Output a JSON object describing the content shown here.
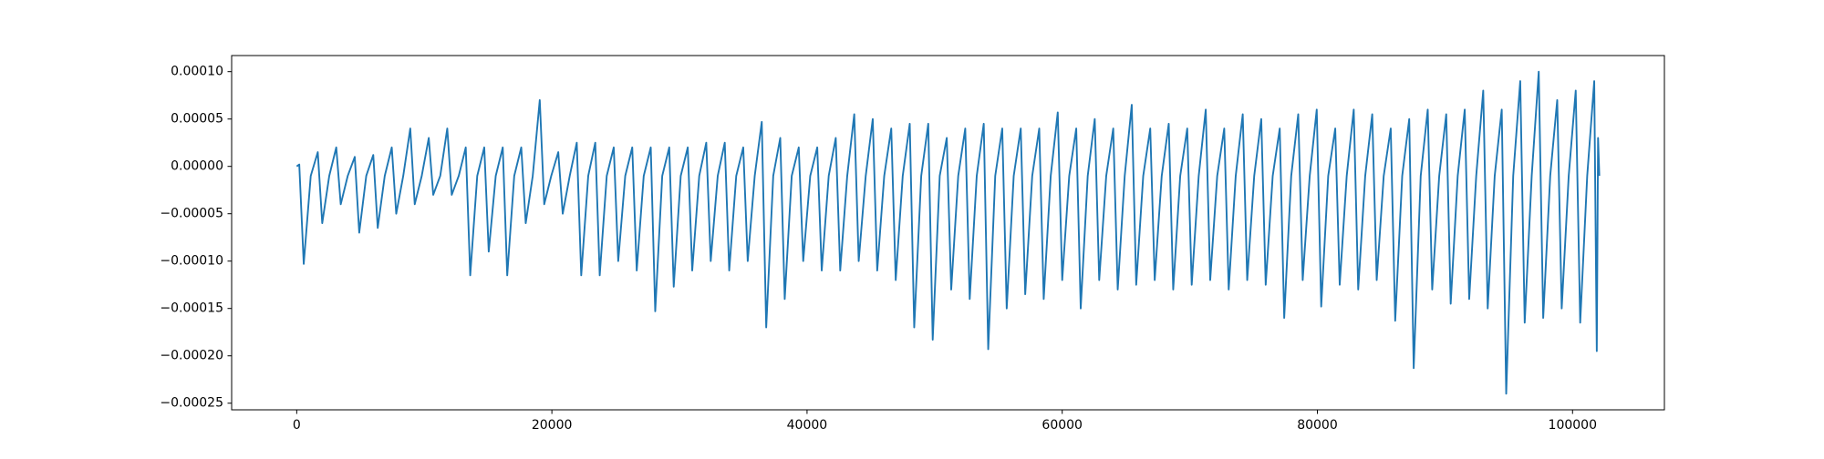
{
  "chart_data": {
    "type": "line",
    "color": "#1f77b4",
    "xlim": [
      -5100,
      107200
    ],
    "ylim": [
      -0.000257,
      0.000117
    ],
    "xticks": [
      0,
      20000,
      40000,
      60000,
      80000,
      100000
    ],
    "yticks": [
      {
        "value": 0.0001,
        "label": "0.00010"
      },
      {
        "value": 5e-05,
        "label": "0.00005"
      },
      {
        "value": 0,
        "label": "0.00000"
      },
      {
        "value": -5e-05,
        "label": "−0.00005"
      },
      {
        "value": -0.0001,
        "label": "−0.00010"
      },
      {
        "value": -0.00015,
        "label": "−0.00015"
      },
      {
        "value": -0.0002,
        "label": "−0.00020"
      },
      {
        "value": -0.00025,
        "label": "−0.00025"
      }
    ],
    "x": [
      0,
      200,
      550,
      1100,
      1650,
      2000,
      2550,
      3100,
      3450,
      4000,
      4550,
      4900,
      5450,
      6000,
      6350,
      6900,
      7450,
      7800,
      8350,
      8900,
      9250,
      9800,
      10350,
      10700,
      11250,
      11800,
      12150,
      12700,
      13250,
      13600,
      14150,
      14700,
      15050,
      15600,
      16150,
      16500,
      17050,
      17600,
      17950,
      18500,
      19050,
      19400,
      19950,
      20500,
      20850,
      21400,
      21950,
      22300,
      22850,
      23400,
      23750,
      24300,
      24850,
      25200,
      25750,
      26300,
      26650,
      27200,
      27750,
      28100,
      28650,
      29200,
      29550,
      30100,
      30650,
      31000,
      31550,
      32100,
      32450,
      33000,
      33550,
      33900,
      34450,
      35000,
      35350,
      35900,
      36450,
      36800,
      37350,
      37900,
      38250,
      38800,
      39350,
      39700,
      40250,
      40800,
      41150,
      41700,
      42250,
      42600,
      43150,
      43700,
      44050,
      44600,
      45150,
      45500,
      46050,
      46600,
      46950,
      47500,
      48050,
      48400,
      48950,
      49500,
      49850,
      50400,
      50950,
      51300,
      51850,
      52400,
      52750,
      53300,
      53850,
      54200,
      54750,
      55300,
      55650,
      56200,
      56750,
      57100,
      57650,
      58200,
      58550,
      59100,
      59650,
      60000,
      60550,
      61100,
      61450,
      62000,
      62550,
      62900,
      63450,
      64000,
      64350,
      64900,
      65450,
      65800,
      66350,
      66900,
      67250,
      67800,
      68350,
      68700,
      69250,
      69800,
      70150,
      70700,
      71250,
      71600,
      72150,
      72700,
      73050,
      73600,
      74150,
      74500,
      75050,
      75600,
      75950,
      76500,
      77050,
      77400,
      77950,
      78500,
      78850,
      79400,
      79950,
      80300,
      80850,
      81400,
      81750,
      82300,
      82850,
      83200,
      83750,
      84300,
      84650,
      85200,
      85750,
      86100,
      86650,
      87200,
      87550,
      88100,
      88650,
      89000,
      89550,
      90100,
      90450,
      91000,
      91550,
      91900,
      92450,
      93000,
      93350,
      93900,
      94450,
      94800,
      95350,
      95900,
      96250,
      96800,
      97350,
      97700,
      98250,
      98800,
      99150,
      99700,
      100250,
      100600,
      101150,
      101700,
      101900,
      102000,
      102100
    ],
    "values": [
      0,
      2e-06,
      -0.000103,
      -1e-05,
      1.5e-05,
      -6e-05,
      -1e-05,
      2e-05,
      -4e-05,
      -1e-05,
      1e-05,
      -7e-05,
      -1e-05,
      1.2e-05,
      -6.5e-05,
      -1e-05,
      2e-05,
      -5e-05,
      -1e-05,
      4e-05,
      -4e-05,
      -1e-05,
      3e-05,
      -3e-05,
      -1e-05,
      4e-05,
      -3e-05,
      -1e-05,
      2e-05,
      -0.000115,
      -1e-05,
      2e-05,
      -9e-05,
      -1e-05,
      2e-05,
      -0.000115,
      -1e-05,
      2e-05,
      -6e-05,
      -1e-05,
      7e-05,
      -4e-05,
      -1e-05,
      1.5e-05,
      -5e-05,
      -1e-05,
      2.5e-05,
      -0.000115,
      -1e-05,
      2.5e-05,
      -0.000115,
      -1e-05,
      2e-05,
      -0.0001,
      -1e-05,
      2e-05,
      -0.00011,
      -1e-05,
      2e-05,
      -0.000153,
      -1e-05,
      2e-05,
      -0.000127,
      -1e-05,
      2e-05,
      -0.00011,
      -1e-05,
      2.5e-05,
      -0.0001,
      -1e-05,
      2.5e-05,
      -0.00011,
      -1e-05,
      2e-05,
      -0.0001,
      -1e-05,
      4.7e-05,
      -0.00017,
      -1e-05,
      3e-05,
      -0.00014,
      -1e-05,
      2e-05,
      -0.0001,
      -1e-05,
      2e-05,
      -0.00011,
      -1e-05,
      3e-05,
      -0.00011,
      -1e-05,
      5.5e-05,
      -0.0001,
      -1e-05,
      5e-05,
      -0.00011,
      -1e-05,
      4e-05,
      -0.00012,
      -1e-05,
      4.5e-05,
      -0.00017,
      -1e-05,
      4.5e-05,
      -0.000183,
      -1e-05,
      3e-05,
      -0.00013,
      -1e-05,
      4e-05,
      -0.00014,
      -1e-05,
      4.5e-05,
      -0.000193,
      -1e-05,
      4e-05,
      -0.00015,
      -1e-05,
      4e-05,
      -0.000135,
      -1e-05,
      4e-05,
      -0.00014,
      -1e-05,
      5.7e-05,
      -0.00012,
      -1e-05,
      4e-05,
      -0.00015,
      -1e-05,
      5e-05,
      -0.00012,
      -1e-05,
      4e-05,
      -0.00013,
      -1e-05,
      6.5e-05,
      -0.000125,
      -1e-05,
      4e-05,
      -0.00012,
      -1e-05,
      4.5e-05,
      -0.00013,
      -1e-05,
      4e-05,
      -0.000125,
      -1e-05,
      6e-05,
      -0.00012,
      -1e-05,
      4e-05,
      -0.00013,
      -1e-05,
      5.5e-05,
      -0.00012,
      -1e-05,
      5e-05,
      -0.000125,
      -1e-05,
      4e-05,
      -0.00016,
      -1e-05,
      5.5e-05,
      -0.00012,
      -1e-05,
      6e-05,
      -0.000148,
      -1e-05,
      4e-05,
      -0.000125,
      -1e-05,
      6e-05,
      -0.00013,
      -1e-05,
      5.5e-05,
      -0.00012,
      -1e-05,
      4e-05,
      -0.000163,
      -1e-05,
      5e-05,
      -0.000213,
      -1e-05,
      6e-05,
      -0.00013,
      -1e-05,
      5.5e-05,
      -0.000145,
      -1e-05,
      6e-05,
      -0.00014,
      -1e-05,
      8e-05,
      -0.00015,
      -1e-05,
      6e-05,
      -0.00024,
      -1e-05,
      9e-05,
      -0.000165,
      -1e-05,
      0.0001,
      -0.00016,
      -1e-05,
      7e-05,
      -0.00015,
      -1e-05,
      8e-05,
      -0.000165,
      -1e-05,
      9e-05,
      -0.000195,
      3e-05,
      -1e-05
    ]
  }
}
